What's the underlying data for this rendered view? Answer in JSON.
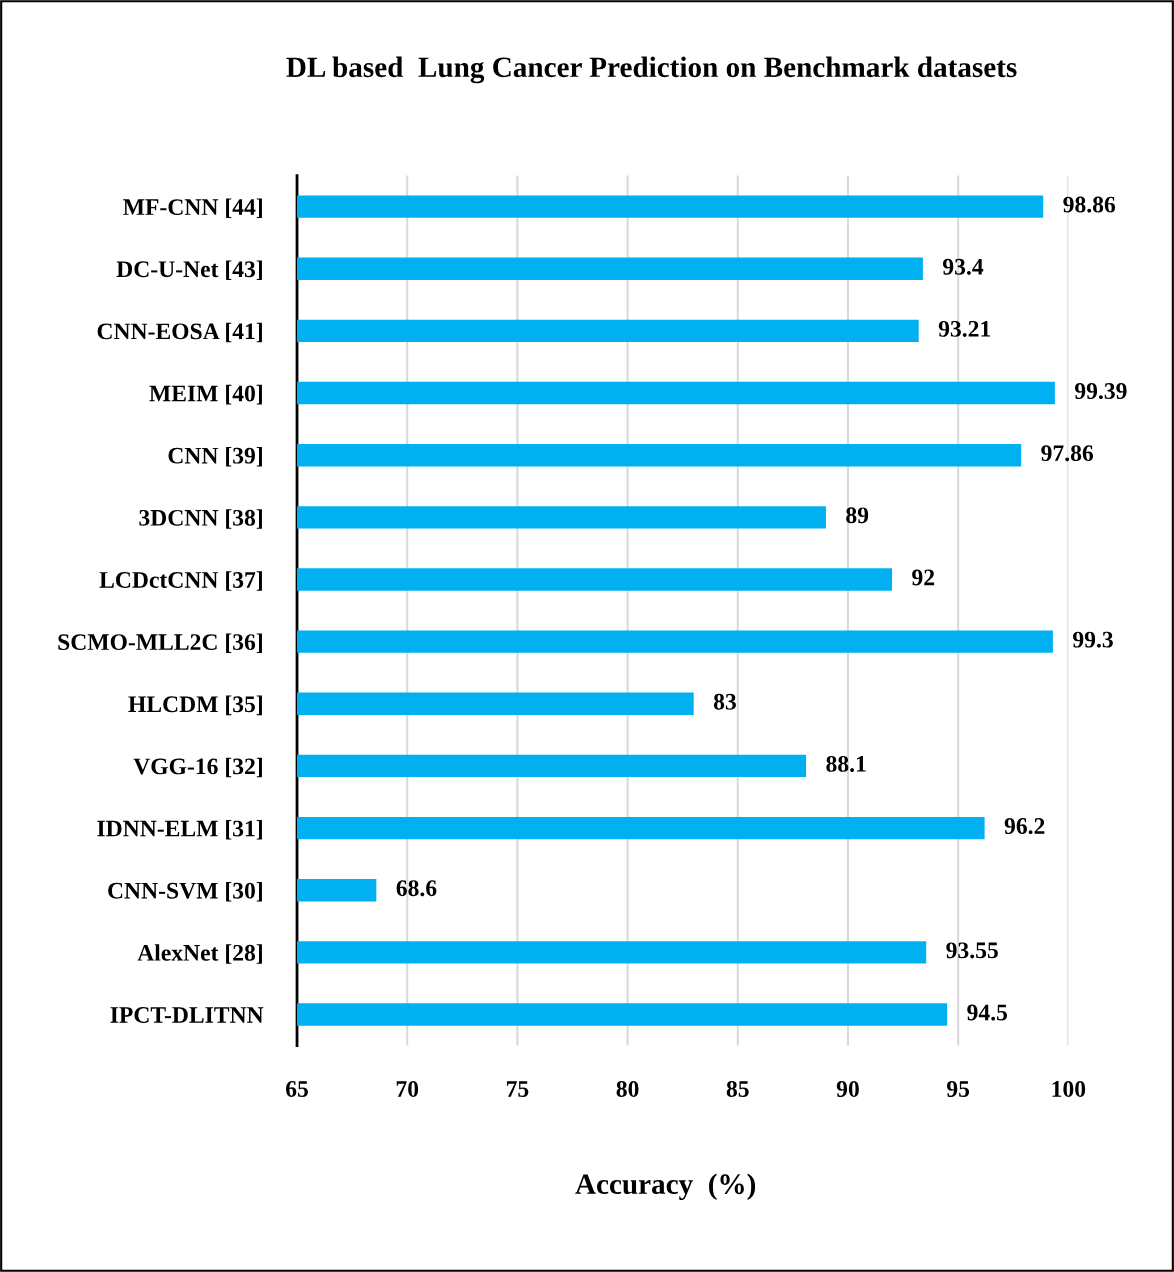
{
  "chart_data": {
    "type": "bar",
    "orientation": "horizontal",
    "title": "DL based  Lung Cancer Prediction on Benchmark datasets",
    "xlabel": "Accuracy  (%)",
    "categories": [
      "MF-CNN [44]",
      "DC-U-Net [43]",
      "CNN-EOSA [41]",
      "MEIM [40]",
      "CNN [39]",
      "3DCNN [38]",
      "LCDctCNN [37]",
      "SCMO-MLL2C [36]",
      "HLCDM [35]",
      "VGG-16 [32]",
      "IDNN-ELM [31]",
      "CNN-SVM [30]",
      "AlexNet [28]",
      "IPCT-DLITNN"
    ],
    "values": [
      98.86,
      93.4,
      93.21,
      99.39,
      97.86,
      89,
      92,
      99.3,
      83,
      88.1,
      96.2,
      68.6,
      93.55,
      94.5
    ],
    "color": "#00b0f0",
    "xlim": [
      65,
      100
    ],
    "xticks": [
      65,
      70,
      75,
      80,
      85,
      90,
      95,
      100
    ],
    "grid": "x",
    "data_labels": true
  }
}
